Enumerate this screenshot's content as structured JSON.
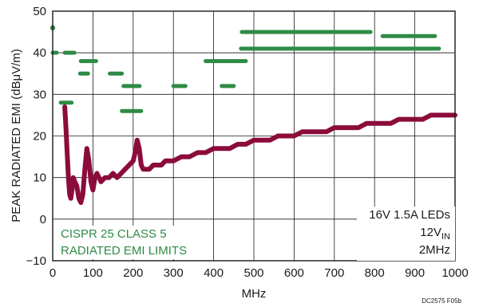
{
  "colors": {
    "trace": "#8b0c3a",
    "limits": "#2e8b45",
    "grid": "#1a1a1a",
    "label": "#2e8b45"
  },
  "chart_data": {
    "type": "line",
    "xlabel": "MHz",
    "ylabel": "PEAK RADIATED EMI (dBμV/m)",
    "xlim": [
      0,
      1000
    ],
    "ylim": [
      -10,
      50
    ],
    "x_ticks": [
      0,
      100,
      200,
      300,
      400,
      500,
      600,
      700,
      800,
      900,
      1000
    ],
    "y_ticks": [
      -10,
      0,
      10,
      20,
      30,
      40,
      50
    ],
    "grid": true,
    "figure_id": "DC2575 F05b",
    "conditions": [
      "16V 1.5A LEDs",
      "12V",
      "IN",
      "2MHz"
    ],
    "limit_label": [
      "CISPR 25 CLASS 5",
      "RADIATED EMI LIMITS"
    ],
    "series": [
      {
        "x": [
          30,
          33,
          36,
          39,
          42,
          45,
          48,
          51,
          55,
          60,
          65,
          70,
          75,
          80,
          85,
          90,
          95,
          100,
          105,
          110,
          115,
          120,
          130,
          140,
          150,
          160,
          170,
          180,
          190,
          200,
          205,
          210,
          215,
          220,
          225,
          230,
          240,
          250,
          260,
          270,
          280,
          290,
          300,
          320,
          340,
          360,
          380,
          400,
          420,
          440,
          460,
          480,
          500,
          520,
          540,
          560,
          580,
          600,
          620,
          640,
          660,
          680,
          700,
          720,
          740,
          760,
          780,
          800,
          820,
          840,
          860,
          880,
          900,
          920,
          940,
          960,
          980,
          1000
        ],
        "y": [
          27,
          22,
          16,
          10,
          6,
          5,
          7,
          10,
          9,
          8,
          5,
          4,
          6,
          12,
          17,
          14,
          9,
          7,
          10,
          11,
          10,
          9,
          10,
          10,
          11,
          10,
          11,
          12,
          13,
          14,
          16,
          19,
          17,
          13,
          12,
          12,
          12,
          13,
          13,
          13,
          14,
          14,
          14,
          15,
          15,
          16,
          16,
          17,
          17,
          17,
          18,
          18,
          19,
          19,
          19,
          20,
          20,
          20,
          21,
          21,
          21,
          21,
          22,
          22,
          22,
          22,
          23,
          23,
          23,
          23,
          24,
          24,
          24,
          24,
          25,
          25,
          25,
          25
        ]
      }
    ],
    "limits": [
      {
        "x": [
          0,
          0
        ],
        "y": 46
      },
      {
        "x": [
          0,
          10
        ],
        "y": 40
      },
      {
        "x": [
          30,
          54
        ],
        "y": 40
      },
      {
        "x": [
          20,
          47
        ],
        "y": 28
      },
      {
        "x": [
          70,
          108
        ],
        "y": 38
      },
      {
        "x": [
          68,
          88
        ],
        "y": 35
      },
      {
        "x": [
          142,
          172
        ],
        "y": 35
      },
      {
        "x": [
          176,
          216
        ],
        "y": 32
      },
      {
        "x": [
          172,
          220
        ],
        "y": 26
      },
      {
        "x": [
          300,
          330
        ],
        "y": 32
      },
      {
        "x": [
          420,
          450
        ],
        "y": 32
      },
      {
        "x": [
          380,
          480
        ],
        "y": 38
      },
      {
        "x": [
          468,
          960
        ],
        "y": 41
      },
      {
        "x": [
          470,
          790
        ],
        "y": 45
      },
      {
        "x": [
          820,
          950
        ],
        "y": 44
      }
    ]
  }
}
